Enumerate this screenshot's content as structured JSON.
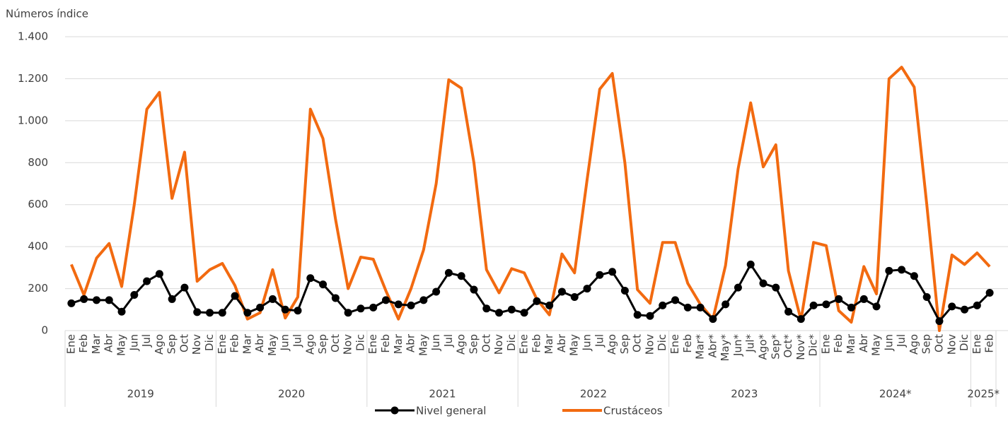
{
  "chart_data": {
    "type": "line",
    "y_axis_title": "Números índice",
    "groups": [
      {
        "label": "2019",
        "categories": [
          "Ene",
          "Feb",
          "Mar",
          "Abr",
          "May",
          "Jun",
          "Jul",
          "Ago",
          "Sep",
          "Oct",
          "Nov",
          "Dic"
        ]
      },
      {
        "label": "2020",
        "categories": [
          "Ene",
          "Feb",
          "Mar",
          "Abr",
          "May",
          "Jun",
          "Jul",
          "Ago",
          "Sep",
          "Oct",
          "Nov",
          "Dic"
        ]
      },
      {
        "label": "2021",
        "categories": [
          "Ene",
          "Feb",
          "Mar",
          "Abr",
          "May",
          "Jun",
          "Jul",
          "Ago",
          "Sep",
          "Oct",
          "Nov",
          "Dic"
        ]
      },
      {
        "label": "2022",
        "categories": [
          "Ene",
          "Feb",
          "Mar",
          "Abr",
          "May",
          "Jun",
          "Jul",
          "Ago",
          "Sep",
          "Oct",
          "Nov",
          "Dic"
        ]
      },
      {
        "label": "2023",
        "categories": [
          "Ene",
          "Feb",
          "Mar*",
          "Abr*",
          "May*",
          "Jun*",
          "Jul*",
          "Ago*",
          "Sep*",
          "Oct*",
          "Nov*",
          "Dic*"
        ]
      },
      {
        "label": "2024*",
        "categories": [
          "Ene",
          "Feb",
          "Mar",
          "Abr",
          "May",
          "Jun",
          "Jul",
          "Ago",
          "Sep",
          "Oct",
          "Nov",
          "Dic"
        ]
      },
      {
        "label": "2025*",
        "categories": [
          "Ene",
          "Feb"
        ]
      }
    ],
    "series": [
      {
        "name": "Nivel general",
        "color": "#000000",
        "markers": true,
        "values": [
          130,
          150,
          145,
          145,
          90,
          170,
          235,
          270,
          150,
          205,
          88,
          85,
          85,
          165,
          85,
          110,
          150,
          100,
          95,
          250,
          220,
          155,
          85,
          105,
          110,
          145,
          125,
          120,
          145,
          185,
          275,
          260,
          195,
          105,
          85,
          100,
          85,
          140,
          120,
          185,
          160,
          200,
          265,
          280,
          190,
          75,
          70,
          120,
          145,
          110,
          110,
          55,
          125,
          205,
          315,
          225,
          205,
          90,
          55,
          120,
          125,
          150,
          110,
          150,
          115,
          285,
          290,
          260,
          160,
          45,
          115,
          100,
          120,
          180
        ]
      },
      {
        "name": "Crustáceos",
        "color": "#f26a10",
        "markers": false,
        "values": [
          315,
          170,
          345,
          415,
          210,
          600,
          1055,
          1135,
          630,
          850,
          235,
          290,
          320,
          215,
          55,
          85,
          290,
          60,
          160,
          1055,
          915,
          530,
          200,
          350,
          340,
          190,
          55,
          200,
          385,
          700,
          1195,
          1155,
          800,
          290,
          180,
          295,
          275,
          150,
          75,
          365,
          275,
          720,
          1150,
          1225,
          800,
          195,
          130,
          420,
          420,
          225,
          125,
          55,
          310,
          770,
          1085,
          780,
          885,
          285,
          50,
          420,
          405,
          95,
          40,
          305,
          175,
          1200,
          1255,
          1160,
          600,
          0,
          360,
          315,
          370,
          305
        ]
      }
    ],
    "ylim": [
      0,
      1400
    ],
    "yticks": [
      0,
      200,
      400,
      600,
      800,
      {
        "value": 1000,
        "label": "1.000"
      },
      {
        "value": 1200,
        "label": "1.200"
      },
      {
        "value": 1400,
        "label": "1.400"
      }
    ],
    "grid": true
  }
}
